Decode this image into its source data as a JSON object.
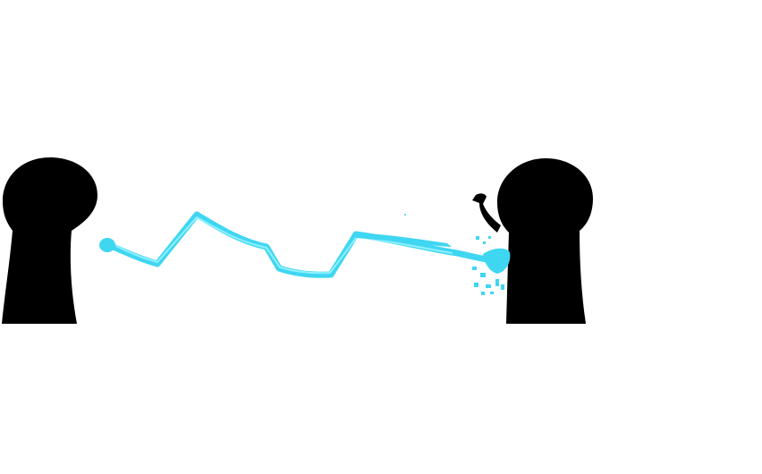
{
  "scene": {
    "background_color": "#ffffff",
    "silhouette_color": "#000000",
    "beam_color": "#3fd6f2",
    "beam_highlight_color": "#8ff0ff",
    "figures": [
      {
        "id": "left-figure",
        "icon": "hooded-figure-icon"
      },
      {
        "id": "right-figure",
        "icon": "hooded-figure-icon",
        "raised_hand": true
      }
    ],
    "effects": [
      {
        "id": "lightning-beam",
        "icon": "lightning-bolt-icon"
      },
      {
        "id": "impact-splash",
        "icon": "splash-icon"
      }
    ]
  }
}
